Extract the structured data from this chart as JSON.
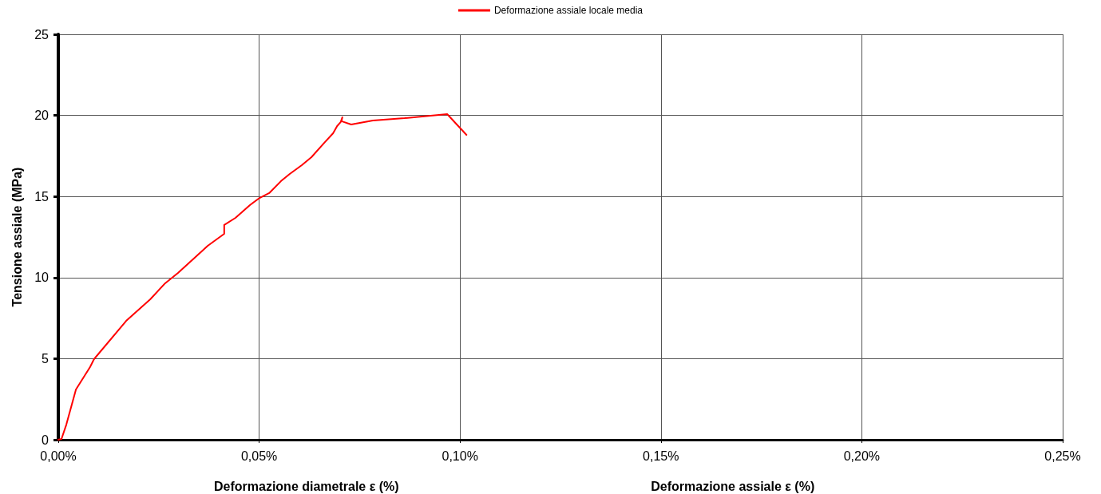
{
  "chart_data": {
    "type": "line",
    "xlabel": "Deformazione diametrale ε (%)",
    "ylabel": "Tensione assiale (MPa)",
    "annotations": [
      "Deformazione assiale ε (%)"
    ],
    "xlim": [
      0,
      0.25
    ],
    "xticks": [
      {
        "value": 0,
        "label": "0,00%"
      },
      {
        "value": 0.05,
        "label": "0,05%"
      },
      {
        "value": 0.1,
        "label": "0,10%"
      },
      {
        "value": 0.15,
        "label": "0,15%"
      },
      {
        "value": 0.2,
        "label": "0,20%"
      },
      {
        "value": 0.25,
        "label": "0,25%"
      }
    ],
    "ylim": [
      0,
      25
    ],
    "yticks": [
      0,
      5,
      10,
      15,
      20,
      25
    ],
    "grid": true,
    "legend": "top",
    "marker": "none",
    "line_style": "solid",
    "series": [
      {
        "name": "Deformazione assiale locale media",
        "color": "#ff0000",
        "x": [
          0,
          0.0008,
          0.002,
          0.0044,
          0.0079,
          0.0089,
          0.0169,
          0.0229,
          0.0266,
          0.0298,
          0.0372,
          0.0413,
          0.0413,
          0.0441,
          0.0477,
          0.0501,
          0.0525,
          0.0554,
          0.0576,
          0.0606,
          0.063,
          0.0664,
          0.0684,
          0.0694,
          0.0703,
          0.0707,
          0.0705,
          0.0729,
          0.0783,
          0.0862,
          0.0968,
          0.1016
        ],
        "values": [
          0,
          0.05,
          0.93,
          3.1,
          4.48,
          4.97,
          7.33,
          8.66,
          9.65,
          10.29,
          11.96,
          12.7,
          13.24,
          13.68,
          14.47,
          14.91,
          15.21,
          15.94,
          16.39,
          16.93,
          17.42,
          18.36,
          18.9,
          19.34,
          19.59,
          19.88,
          19.64,
          19.44,
          19.69,
          19.83,
          20.08,
          18.8
        ]
      }
    ]
  }
}
